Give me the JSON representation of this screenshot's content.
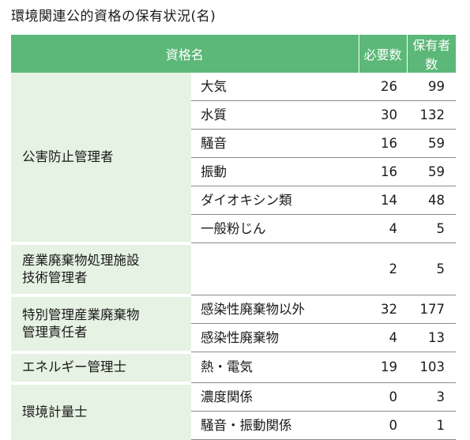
{
  "title": "環境関連公的資格の保有状況(名)",
  "header": {
    "col1": "資格名",
    "col2": "必要数",
    "col3": "保有者数"
  },
  "groups": [
    {
      "name": "公害防止管理者",
      "items": [
        {
          "name": "大気",
          "required": "26",
          "holders": "99"
        },
        {
          "name": "水質",
          "required": "30",
          "holders": "132"
        },
        {
          "name": "騒音",
          "required": "16",
          "holders": "59"
        },
        {
          "name": "振動",
          "required": "16",
          "holders": "59"
        },
        {
          "name": "ダイオキシン類",
          "required": "14",
          "holders": "48"
        },
        {
          "name": "一般粉じん",
          "required": "4",
          "holders": "5"
        }
      ]
    },
    {
      "name_line1": "産業廃棄物処理施設",
      "name_line2": "技術管理者",
      "items": [
        {
          "name": "",
          "required": "2",
          "holders": "5"
        }
      ]
    },
    {
      "name_line1": "特別管理産業廃棄物",
      "name_line2": "管理責任者",
      "items": [
        {
          "name": "感染性廃棄物以外",
          "required": "32",
          "holders": "177"
        },
        {
          "name": "感染性廃棄物",
          "required": "4",
          "holders": "13"
        }
      ]
    },
    {
      "name": "エネルギー管理士",
      "items": [
        {
          "name": "熱・電気",
          "required": "19",
          "holders": "103"
        }
      ]
    },
    {
      "name": "環境計量士",
      "items": [
        {
          "name": "濃度関係",
          "required": "0",
          "holders": "3"
        },
        {
          "name": "騒音・振動関係",
          "required": "0",
          "holders": "1"
        }
      ]
    }
  ]
}
